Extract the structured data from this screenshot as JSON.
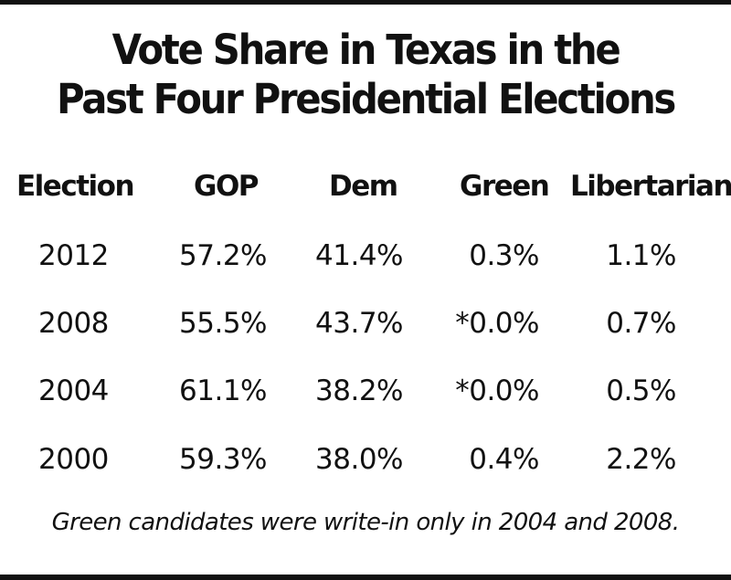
{
  "chart_data": {
    "type": "table",
    "title_lines": [
      "Vote Share in Texas in the",
      "Past Four Presidential Elections"
    ],
    "columns": [
      "Election",
      "GOP",
      "Dem",
      "Green",
      "Libertarian"
    ],
    "rows": [
      [
        "2012",
        "57.2%",
        "41.4%",
        "0.3%",
        "1.1%"
      ],
      [
        "2008",
        "55.5%",
        "43.7%",
        "*0.0%",
        "0.7%"
      ],
      [
        "2004",
        "61.1%",
        "38.2%",
        "*0.0%",
        "0.5%"
      ],
      [
        "2000",
        "59.3%",
        "38.0%",
        "0.4%",
        "2.2%"
      ]
    ],
    "footnote": "Green candidates were write-in only in 2004 and 2008."
  }
}
